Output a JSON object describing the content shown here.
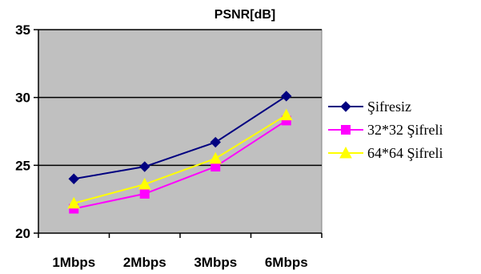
{
  "chart_data": {
    "type": "line",
    "title": "PSNR[dB]",
    "categories": [
      "1Mbps",
      "2Mbps",
      "3Mbps",
      "6Mbps"
    ],
    "ylim": [
      20,
      35
    ],
    "yticks": [
      20,
      25,
      30,
      35
    ],
    "grid": "horizontal",
    "legend_position": "right",
    "plot_background": "#c0c0c0",
    "series": [
      {
        "name": "Şifresiz",
        "values": [
          24.0,
          24.9,
          26.7,
          30.1
        ],
        "color": "#000080",
        "marker": "diamond"
      },
      {
        "name": "32*32 Şifreli",
        "values": [
          21.8,
          22.9,
          24.9,
          28.3
        ],
        "color": "#ff00ff",
        "marker": "square"
      },
      {
        "name": "64*64 Şifreli",
        "values": [
          22.2,
          23.6,
          25.5,
          28.7
        ],
        "color": "#ffff00",
        "marker": "triangle"
      }
    ]
  }
}
